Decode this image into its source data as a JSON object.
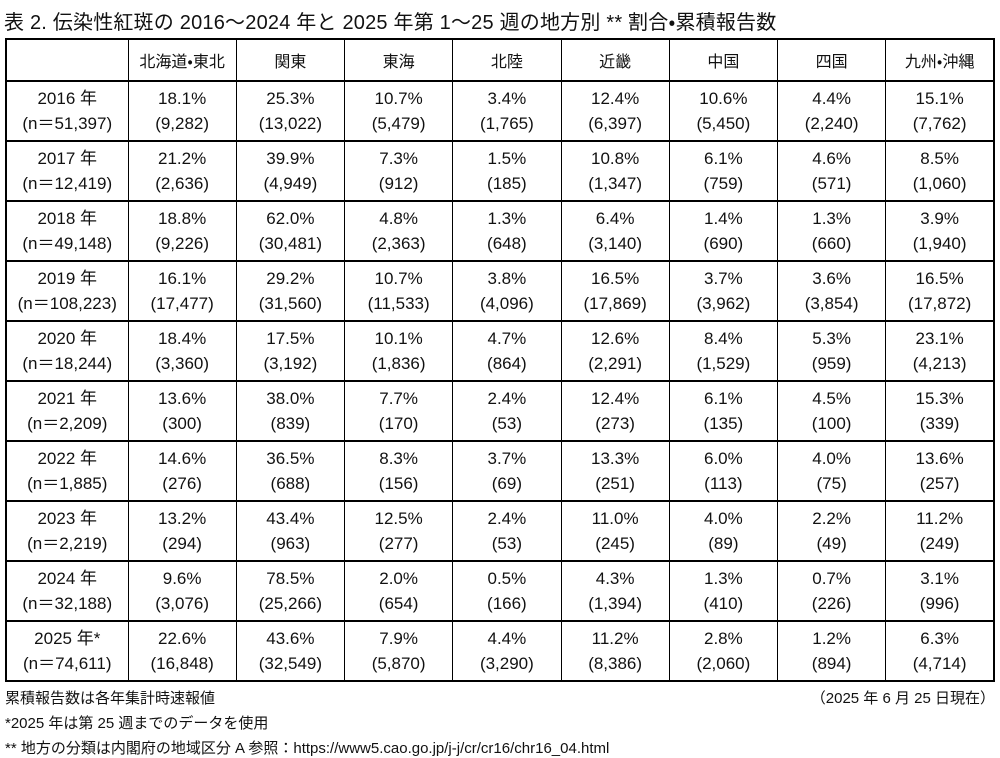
{
  "title": "表 2. 伝染性紅斑の 2016～2024 年と 2025 年第 1～25 週の地方別 ** 割合・累積報告数",
  "table": {
    "column_headers": [
      "",
      "北海道・東北",
      "関東",
      "東海",
      "北陸",
      "近畿",
      "中国",
      "四国",
      "九州・沖縄"
    ],
    "rows": [
      {
        "year_label": "2016 年",
        "n_label": "(n＝51,397)",
        "cells": [
          {
            "pct": "18.1%",
            "count": "(9,282)"
          },
          {
            "pct": "25.3%",
            "count": "(13,022)"
          },
          {
            "pct": "10.7%",
            "count": "(5,479)"
          },
          {
            "pct": "3.4%",
            "count": "(1,765)"
          },
          {
            "pct": "12.4%",
            "count": "(6,397)"
          },
          {
            "pct": "10.6%",
            "count": "(5,450)"
          },
          {
            "pct": "4.4%",
            "count": "(2,240)"
          },
          {
            "pct": "15.1%",
            "count": "(7,762)"
          }
        ]
      },
      {
        "year_label": "2017 年",
        "n_label": "(n＝12,419)",
        "cells": [
          {
            "pct": "21.2%",
            "count": "(2,636)"
          },
          {
            "pct": "39.9%",
            "count": "(4,949)"
          },
          {
            "pct": "7.3%",
            "count": "(912)"
          },
          {
            "pct": "1.5%",
            "count": "(185)"
          },
          {
            "pct": "10.8%",
            "count": "(1,347)"
          },
          {
            "pct": "6.1%",
            "count": "(759)"
          },
          {
            "pct": "4.6%",
            "count": "(571)"
          },
          {
            "pct": "8.5%",
            "count": "(1,060)"
          }
        ]
      },
      {
        "year_label": "2018 年",
        "n_label": "(n＝49,148)",
        "cells": [
          {
            "pct": "18.8%",
            "count": "(9,226)"
          },
          {
            "pct": "62.0%",
            "count": "(30,481)"
          },
          {
            "pct": "4.8%",
            "count": "(2,363)"
          },
          {
            "pct": "1.3%",
            "count": "(648)"
          },
          {
            "pct": "6.4%",
            "count": "(3,140)"
          },
          {
            "pct": "1.4%",
            "count": "(690)"
          },
          {
            "pct": "1.3%",
            "count": "(660)"
          },
          {
            "pct": "3.9%",
            "count": "(1,940)"
          }
        ]
      },
      {
        "year_label": "2019 年",
        "n_label": "(n＝108,223)",
        "cells": [
          {
            "pct": "16.1%",
            "count": "(17,477)"
          },
          {
            "pct": "29.2%",
            "count": "(31,560)"
          },
          {
            "pct": "10.7%",
            "count": "(11,533)"
          },
          {
            "pct": "3.8%",
            "count": "(4,096)"
          },
          {
            "pct": "16.5%",
            "count": "(17,869)"
          },
          {
            "pct": "3.7%",
            "count": "(3,962)"
          },
          {
            "pct": "3.6%",
            "count": "(3,854)"
          },
          {
            "pct": "16.5%",
            "count": "(17,872)"
          }
        ]
      },
      {
        "year_label": "2020 年",
        "n_label": "(n＝18,244)",
        "cells": [
          {
            "pct": "18.4%",
            "count": "(3,360)"
          },
          {
            "pct": "17.5%",
            "count": "(3,192)"
          },
          {
            "pct": "10.1%",
            "count": "(1,836)"
          },
          {
            "pct": "4.7%",
            "count": "(864)"
          },
          {
            "pct": "12.6%",
            "count": "(2,291)"
          },
          {
            "pct": "8.4%",
            "count": "(1,529)"
          },
          {
            "pct": "5.3%",
            "count": "(959)"
          },
          {
            "pct": "23.1%",
            "count": "(4,213)"
          }
        ]
      },
      {
        "year_label": "2021 年",
        "n_label": "(n＝2,209)",
        "cells": [
          {
            "pct": "13.6%",
            "count": "(300)"
          },
          {
            "pct": "38.0%",
            "count": "(839)"
          },
          {
            "pct": "7.7%",
            "count": "(170)"
          },
          {
            "pct": "2.4%",
            "count": "(53)"
          },
          {
            "pct": "12.4%",
            "count": "(273)"
          },
          {
            "pct": "6.1%",
            "count": "(135)"
          },
          {
            "pct": "4.5%",
            "count": "(100)"
          },
          {
            "pct": "15.3%",
            "count": "(339)"
          }
        ]
      },
      {
        "year_label": "2022 年",
        "n_label": "(n＝1,885)",
        "cells": [
          {
            "pct": "14.6%",
            "count": "(276)"
          },
          {
            "pct": "36.5%",
            "count": "(688)"
          },
          {
            "pct": "8.3%",
            "count": "(156)"
          },
          {
            "pct": "3.7%",
            "count": "(69)"
          },
          {
            "pct": "13.3%",
            "count": "(251)"
          },
          {
            "pct": "6.0%",
            "count": "(113)"
          },
          {
            "pct": "4.0%",
            "count": "(75)"
          },
          {
            "pct": "13.6%",
            "count": "(257)"
          }
        ]
      },
      {
        "year_label": "2023 年",
        "n_label": "(n＝2,219)",
        "cells": [
          {
            "pct": "13.2%",
            "count": "(294)"
          },
          {
            "pct": "43.4%",
            "count": "(963)"
          },
          {
            "pct": "12.5%",
            "count": "(277)"
          },
          {
            "pct": "2.4%",
            "count": "(53)"
          },
          {
            "pct": "11.0%",
            "count": "(245)"
          },
          {
            "pct": "4.0%",
            "count": "(89)"
          },
          {
            "pct": "2.2%",
            "count": "(49)"
          },
          {
            "pct": "11.2%",
            "count": "(249)"
          }
        ]
      },
      {
        "year_label": "2024 年",
        "n_label": "(n＝32,188)",
        "cells": [
          {
            "pct": "9.6%",
            "count": "(3,076)"
          },
          {
            "pct": "78.5%",
            "count": "(25,266)"
          },
          {
            "pct": "2.0%",
            "count": "(654)"
          },
          {
            "pct": "0.5%",
            "count": "(166)"
          },
          {
            "pct": "4.3%",
            "count": "(1,394)"
          },
          {
            "pct": "1.3%",
            "count": "(410)"
          },
          {
            "pct": "0.7%",
            "count": "(226)"
          },
          {
            "pct": "3.1%",
            "count": "(996)"
          }
        ]
      },
      {
        "year_label": "2025 年*",
        "n_label": "(n＝74,611)",
        "cells": [
          {
            "pct": "22.6%",
            "count": "(16,848)"
          },
          {
            "pct": "43.6%",
            "count": "(32,549)"
          },
          {
            "pct": "7.9%",
            "count": "(5,870)"
          },
          {
            "pct": "4.4%",
            "count": "(3,290)"
          },
          {
            "pct": "11.2%",
            "count": "(8,386)"
          },
          {
            "pct": "2.8%",
            "count": "(2,060)"
          },
          {
            "pct": "1.2%",
            "count": "(894)"
          },
          {
            "pct": "6.3%",
            "count": "(4,714)"
          }
        ]
      }
    ]
  },
  "footnotes": {
    "cumulative_note": "累積報告数は各年集計時速報値",
    "as_of_date": "（2025 年 6 月 25 日現在）",
    "week_note": "*2025 年は第 25 週までのデータを使用",
    "region_note_prefix": "** 地方の分類は内閣府の地域区分 A 参照：",
    "region_note_url": "https://www5.cao.go.jp/j-j/cr/cr16/chr16_04.html"
  }
}
